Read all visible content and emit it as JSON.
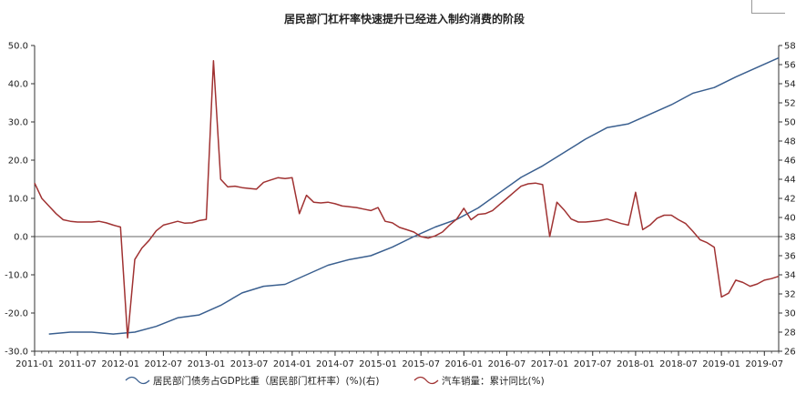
{
  "chart_data": {
    "type": "line",
    "title": "居民部门杠杆率快速提升已经进入制约消费的阶段",
    "xlabel": "",
    "ylabel": "",
    "x_ticks": [
      "2011-01",
      "2011-07",
      "2012-01",
      "2012-07",
      "2013-01",
      "2013-07",
      "2014-01",
      "2014-07",
      "2015-01",
      "2015-07",
      "2016-01",
      "2016-07",
      "2017-01",
      "2017-07",
      "2018-01",
      "2018-07",
      "2019-01",
      "2019-07"
    ],
    "x_range": [
      "2011-01",
      "2019-09"
    ],
    "left_axis": {
      "ylim": [
        -30,
        50
      ],
      "ticks": [
        "-30.0",
        "-20.0",
        "-10.0",
        "0.0",
        "10.0",
        "20.0",
        "30.0",
        "40.0",
        "50.0"
      ]
    },
    "right_axis": {
      "ylim": [
        26,
        58
      ],
      "ticks": [
        "26",
        "28",
        "30",
        "32",
        "34",
        "36",
        "38",
        "40",
        "42",
        "44",
        "46",
        "48",
        "50",
        "52",
        "54",
        "56",
        "58"
      ]
    },
    "zero_line": 0,
    "series": [
      {
        "name": "居民部门债务占GDP比重（居民部门杠杆率）(%)(右)",
        "axis": "right",
        "color": "#3a5f8f",
        "points": [
          [
            "2011-03",
            27.8
          ],
          [
            "2011-06",
            28.0
          ],
          [
            "2011-09",
            28.0
          ],
          [
            "2011-12",
            27.8
          ],
          [
            "2012-03",
            28.0
          ],
          [
            "2012-06",
            28.6
          ],
          [
            "2012-09",
            29.5
          ],
          [
            "2012-12",
            29.8
          ],
          [
            "2013-03",
            30.8
          ],
          [
            "2013-06",
            32.1
          ],
          [
            "2013-09",
            32.8
          ],
          [
            "2013-12",
            33.0
          ],
          [
            "2014-03",
            34.0
          ],
          [
            "2014-06",
            35.0
          ],
          [
            "2014-09",
            35.6
          ],
          [
            "2014-12",
            36.0
          ],
          [
            "2015-03",
            36.9
          ],
          [
            "2015-06",
            38.0
          ],
          [
            "2015-09",
            39.0
          ],
          [
            "2015-12",
            39.8
          ],
          [
            "2016-03",
            41.0
          ],
          [
            "2016-06",
            42.6
          ],
          [
            "2016-09",
            44.2
          ],
          [
            "2016-12",
            45.4
          ],
          [
            "2017-03",
            46.8
          ],
          [
            "2017-06",
            48.2
          ],
          [
            "2017-09",
            49.4
          ],
          [
            "2017-12",
            49.8
          ],
          [
            "2018-03",
            50.8
          ],
          [
            "2018-06",
            51.8
          ],
          [
            "2018-09",
            53.0
          ],
          [
            "2018-12",
            53.6
          ],
          [
            "2019-03",
            54.7
          ],
          [
            "2019-06",
            55.7
          ],
          [
            "2019-09",
            56.7
          ]
        ]
      },
      {
        "name": "汽车销量：累计同比(%)",
        "axis": "left",
        "color": "#a03232",
        "points": [
          [
            "2011-01",
            14.0
          ],
          [
            "2011-02",
            10.0
          ],
          [
            "2011-03",
            8.0
          ],
          [
            "2011-04",
            6.0
          ],
          [
            "2011-05",
            4.4
          ],
          [
            "2011-06",
            4.0
          ],
          [
            "2011-07",
            3.8
          ],
          [
            "2011-08",
            3.8
          ],
          [
            "2011-09",
            3.8
          ],
          [
            "2011-10",
            4.0
          ],
          [
            "2011-11",
            3.6
          ],
          [
            "2011-12",
            3.0
          ],
          [
            "2012-01",
            2.5
          ],
          [
            "2012-02",
            -26.5
          ],
          [
            "2012-03",
            -6.0
          ],
          [
            "2012-04",
            -3.0
          ],
          [
            "2012-05",
            -1.0
          ],
          [
            "2012-06",
            1.5
          ],
          [
            "2012-07",
            3.0
          ],
          [
            "2012-08",
            3.5
          ],
          [
            "2012-09",
            4.0
          ],
          [
            "2012-10",
            3.5
          ],
          [
            "2012-11",
            3.6
          ],
          [
            "2012-12",
            4.2
          ],
          [
            "2013-01",
            4.5
          ],
          [
            "2013-02",
            46.0
          ],
          [
            "2013-03",
            15.0
          ],
          [
            "2013-04",
            13.0
          ],
          [
            "2013-05",
            13.2
          ],
          [
            "2013-06",
            12.8
          ],
          [
            "2013-07",
            12.6
          ],
          [
            "2013-08",
            12.4
          ],
          [
            "2013-09",
            14.2
          ],
          [
            "2013-10",
            14.8
          ],
          [
            "2013-11",
            15.4
          ],
          [
            "2013-12",
            15.2
          ],
          [
            "2014-01",
            15.4
          ],
          [
            "2014-02",
            6.0
          ],
          [
            "2014-03",
            10.8
          ],
          [
            "2014-04",
            9.0
          ],
          [
            "2014-05",
            8.8
          ],
          [
            "2014-06",
            9.0
          ],
          [
            "2014-07",
            8.6
          ],
          [
            "2014-08",
            8.0
          ],
          [
            "2014-09",
            7.8
          ],
          [
            "2014-10",
            7.6
          ],
          [
            "2014-11",
            7.2
          ],
          [
            "2014-12",
            6.8
          ],
          [
            "2015-01",
            7.6
          ],
          [
            "2015-02",
            4.0
          ],
          [
            "2015-03",
            3.6
          ],
          [
            "2015-04",
            2.4
          ],
          [
            "2015-05",
            1.8
          ],
          [
            "2015-06",
            1.2
          ],
          [
            "2015-07",
            0.0
          ],
          [
            "2015-08",
            -0.4
          ],
          [
            "2015-09",
            0.2
          ],
          [
            "2015-10",
            1.2
          ],
          [
            "2015-11",
            3.0
          ],
          [
            "2015-12",
            4.6
          ],
          [
            "2016-01",
            7.4
          ],
          [
            "2016-02",
            4.4
          ],
          [
            "2016-03",
            5.8
          ],
          [
            "2016-04",
            6.0
          ],
          [
            "2016-05",
            6.8
          ],
          [
            "2016-06",
            8.4
          ],
          [
            "2016-07",
            10.0
          ],
          [
            "2016-08",
            11.6
          ],
          [
            "2016-09",
            13.2
          ],
          [
            "2016-10",
            13.8
          ],
          [
            "2016-11",
            14.0
          ],
          [
            "2016-12",
            13.6
          ],
          [
            "2017-01",
            0.0
          ],
          [
            "2017-02",
            9.0
          ],
          [
            "2017-03",
            7.0
          ],
          [
            "2017-04",
            4.6
          ],
          [
            "2017-05",
            3.8
          ],
          [
            "2017-06",
            3.8
          ],
          [
            "2017-07",
            4.0
          ],
          [
            "2017-08",
            4.2
          ],
          [
            "2017-09",
            4.6
          ],
          [
            "2017-10",
            4.0
          ],
          [
            "2017-11",
            3.4
          ],
          [
            "2017-12",
            3.0
          ],
          [
            "2018-01",
            11.6
          ],
          [
            "2018-02",
            1.8
          ],
          [
            "2018-03",
            3.0
          ],
          [
            "2018-04",
            4.8
          ],
          [
            "2018-05",
            5.6
          ],
          [
            "2018-06",
            5.6
          ],
          [
            "2018-07",
            4.4
          ],
          [
            "2018-08",
            3.4
          ],
          [
            "2018-09",
            1.4
          ],
          [
            "2018-10",
            -0.8
          ],
          [
            "2018-11",
            -1.6
          ],
          [
            "2018-12",
            -2.8
          ],
          [
            "2019-01",
            -15.8
          ],
          [
            "2019-02",
            -14.8
          ],
          [
            "2019-03",
            -11.4
          ],
          [
            "2019-04",
            -12.0
          ],
          [
            "2019-05",
            -13.0
          ],
          [
            "2019-06",
            -12.4
          ],
          [
            "2019-07",
            -11.4
          ],
          [
            "2019-08",
            -11.0
          ],
          [
            "2019-09",
            -10.4
          ]
        ]
      }
    ],
    "legend": {
      "position": "bottom"
    },
    "grid": false
  }
}
